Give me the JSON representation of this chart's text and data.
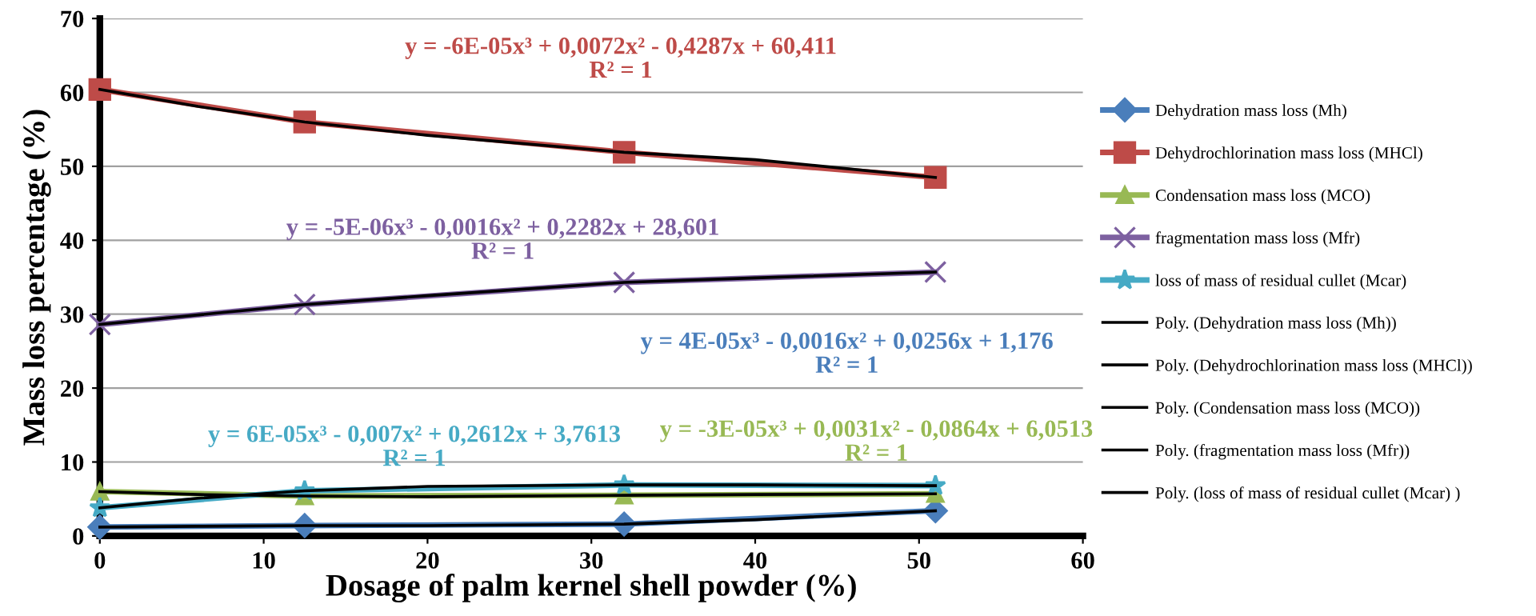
{
  "chart_data": {
    "type": "line",
    "xlabel": "Dosage of palm kernel shell powder (%)",
    "ylabel": "Mass loss percentage (%)",
    "xlim": [
      0,
      60
    ],
    "xticks": [
      0,
      10,
      20,
      30,
      40,
      50,
      60
    ],
    "ylim": [
      0,
      70
    ],
    "yticks": [
      0,
      10,
      20,
      30,
      40,
      50,
      60,
      70
    ],
    "grid": "y",
    "legend": "right",
    "series": [
      {
        "name": "Dehydration mass loss (Mh)",
        "color": "#4a7ebb",
        "marker": "diamond",
        "x": [
          0,
          12.5,
          32,
          51
        ],
        "values": [
          1.2,
          1.4,
          1.6,
          3.4
        ]
      },
      {
        "name": "Dehydrochlorination mass loss (MHCl)",
        "color": "#be4b48",
        "marker": "square",
        "x": [
          0,
          12.5,
          32,
          51
        ],
        "values": [
          60.4,
          56.0,
          51.9,
          48.5
        ]
      },
      {
        "name": "Condensation mass loss (MCO)",
        "color": "#98b954",
        "marker": "triangle",
        "x": [
          0,
          12.5,
          32,
          51
        ],
        "values": [
          6.0,
          5.4,
          5.5,
          5.7
        ]
      },
      {
        "name": "fragmentation mass loss (Mfr)",
        "color": "#7d60a0",
        "marker": "cross",
        "x": [
          0,
          12.5,
          32,
          51
        ],
        "values": [
          28.6,
          31.3,
          34.3,
          35.7
        ]
      },
      {
        "name": "loss of mass of residual cullet (Mcar)",
        "color": "#46aac5",
        "marker": "star",
        "x": [
          0,
          12.5,
          32,
          51
        ],
        "values": [
          3.8,
          6.1,
          6.9,
          6.8
        ]
      },
      {
        "name": "Poly. (Dehydration mass loss (Mh))",
        "color": "#000000",
        "marker": "none",
        "x": [
          0,
          6,
          12.5,
          20,
          32,
          40,
          51
        ],
        "values": [
          1.2,
          1.3,
          1.4,
          1.4,
          1.6,
          2.2,
          3.4
        ]
      },
      {
        "name": "Poly. (Dehydrochlorination mass loss (MHCl))",
        "color": "#000000",
        "marker": "none",
        "x": [
          0,
          6,
          12.5,
          20,
          32,
          40,
          51
        ],
        "values": [
          60.4,
          58.1,
          56.0,
          54.2,
          51.9,
          50.9,
          48.5
        ]
      },
      {
        "name": "Poly. (Condensation mass loss (MCO))",
        "color": "#000000",
        "marker": "none",
        "x": [
          0,
          6,
          12.5,
          20,
          32,
          40,
          51
        ],
        "values": [
          6.0,
          5.6,
          5.4,
          5.3,
          5.5,
          5.6,
          5.7
        ]
      },
      {
        "name": "Poly. (fragmentation mass loss (Mfr))",
        "color": "#000000",
        "marker": "none",
        "x": [
          0,
          6,
          12.5,
          20,
          32,
          40,
          51
        ],
        "values": [
          28.6,
          29.9,
          31.3,
          32.5,
          34.3,
          34.9,
          35.7
        ]
      },
      {
        "name": "Poly. (loss of mass of residual cullet (Mcar) )",
        "color": "#000000",
        "marker": "none",
        "x": [
          0,
          6,
          12.5,
          20,
          32,
          40,
          51
        ],
        "values": [
          3.8,
          5.1,
          6.1,
          6.7,
          6.9,
          6.9,
          6.8
        ]
      }
    ],
    "annotations": [
      "y = 4E-05x³ - 0,0016x² + 0,0256x + 1,176\nR² = 1",
      "y = -6E-05x³ + 0,0072x² - 0,4287x + 60,411\nR² = 1",
      "y = -3E-05x³ + 0,0031x² - 0,0864x + 6,0513\nR² = 1",
      "y = -5E-06x³ - 0,0016x² + 0,2282x + 28,601\nR² = 1",
      "y = 6E-05x³ - 0,007x² + 0,2612x + 3,7613\nR² = 1"
    ]
  }
}
